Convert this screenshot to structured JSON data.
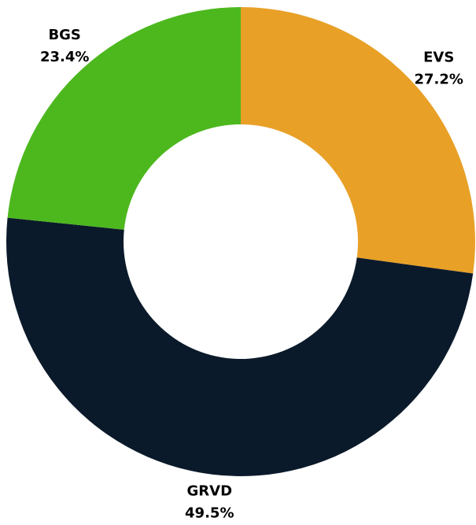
{
  "chart_data": {
    "type": "pie",
    "categories": [
      "EVS",
      "GRVD",
      "BGS"
    ],
    "values": [
      27.2,
      49.5,
      23.4
    ],
    "value_labels": [
      "27.2%",
      "49.5%",
      "23.4%"
    ],
    "colors": [
      "#e8a027",
      "#0b1a2a",
      "#4cb81e"
    ]
  }
}
